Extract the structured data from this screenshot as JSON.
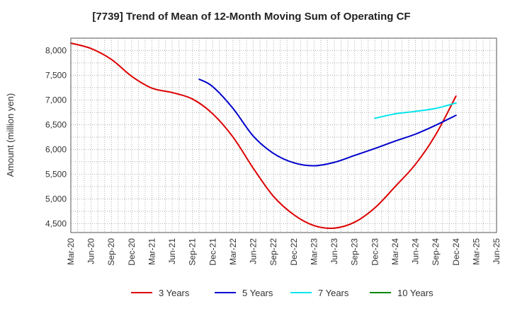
{
  "chart_data": {
    "type": "line",
    "title": "[7739]  Trend of Mean of 12-Month Moving Sum of Operating CF",
    "xlabel": "",
    "ylabel": "Amount (million yen)",
    "ylim": [
      4320,
      8250
    ],
    "yticks": [
      4500,
      5000,
      5500,
      6000,
      6500,
      7000,
      7500,
      8000
    ],
    "ytick_labels": [
      "4,500",
      "5,000",
      "5,500",
      "6,000",
      "6,500",
      "7,000",
      "7,500",
      "8,000"
    ],
    "xlim": [
      0,
      63
    ],
    "x_ticks": [
      0,
      3,
      6,
      9,
      12,
      15,
      18,
      21,
      24,
      27,
      30,
      33,
      36,
      39,
      42,
      45,
      48,
      51,
      54,
      57,
      60,
      63
    ],
    "x_tick_labels": [
      "Mar-20",
      "Jun-20",
      "Sep-20",
      "Dec-20",
      "Mar-21",
      "Jun-21",
      "Sep-21",
      "Dec-21",
      "Mar-22",
      "Jun-22",
      "Sep-22",
      "Dec-22",
      "Mar-23",
      "Jun-23",
      "Sep-23",
      "Dec-23",
      "Mar-24",
      "Jun-24",
      "Sep-24",
      "Dec-24",
      "Mar-25",
      "Jun-25"
    ],
    "grid": true,
    "legend_position": "bottom",
    "series": [
      {
        "name": "3 Years",
        "color": "#dd0000",
        "x": [
          0,
          3,
          6,
          9,
          12,
          15,
          18,
          21,
          24,
          27,
          30,
          33,
          36,
          39,
          42,
          45,
          48,
          51,
          54,
          57
        ],
        "y": [
          8150,
          8040,
          7820,
          7480,
          7240,
          7150,
          7020,
          6720,
          6250,
          5620,
          5050,
          4680,
          4460,
          4410,
          4530,
          4820,
          5250,
          5700,
          6300,
          7080
        ]
      },
      {
        "name": "5 Years",
        "color": "#0000cc",
        "x": [
          19,
          21,
          24,
          27,
          30,
          33,
          36,
          39,
          42,
          45,
          48,
          51,
          54,
          57
        ],
        "y": [
          7420,
          7270,
          6830,
          6270,
          5920,
          5730,
          5670,
          5740,
          5880,
          6020,
          6170,
          6310,
          6490,
          6690
        ]
      },
      {
        "name": "7 Years",
        "color": "#00e5ee",
        "x": [
          45,
          48,
          51,
          54,
          57
        ],
        "y": [
          6630,
          6720,
          6770,
          6830,
          6940
        ]
      },
      {
        "name": "10 Years",
        "color": "#008800",
        "x": [],
        "y": []
      }
    ]
  }
}
